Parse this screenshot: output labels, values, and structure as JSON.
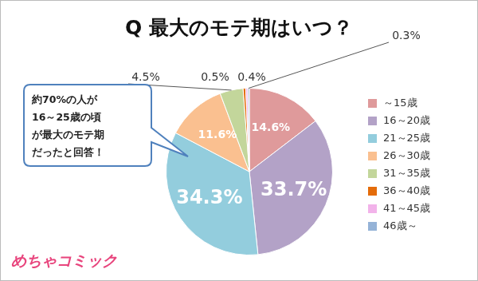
{
  "chart_data": {
    "type": "pie",
    "title": "Q 最大のモテ期はいつ？",
    "categories": [
      "～15歳",
      "16～20歳",
      "21～25歳",
      "26～30歳",
      "31～35歳",
      "36～40歳",
      "41～45歳",
      "46歳～"
    ],
    "values": [
      14.6,
      33.7,
      34.3,
      11.6,
      4.5,
      0.5,
      0.4,
      0.3
    ],
    "value_labels": [
      "14.6%",
      "33.7%",
      "34.3%",
      "11.6%",
      "4.5%",
      "0.5%",
      "0.4%",
      "0.3%"
    ],
    "colors": [
      "#df9a9b",
      "#b3a2c7",
      "#93cddd",
      "#fac090",
      "#c3d69b",
      "#e46c0a",
      "#f2b3ea",
      "#95b3d7"
    ],
    "legend": "right",
    "data_labels": true,
    "annotations": [
      "約70%の人が",
      "16～25歳の頃",
      "が最大のモテ期",
      "だったと回答！"
    ],
    "source": "めちゃコミック"
  }
}
